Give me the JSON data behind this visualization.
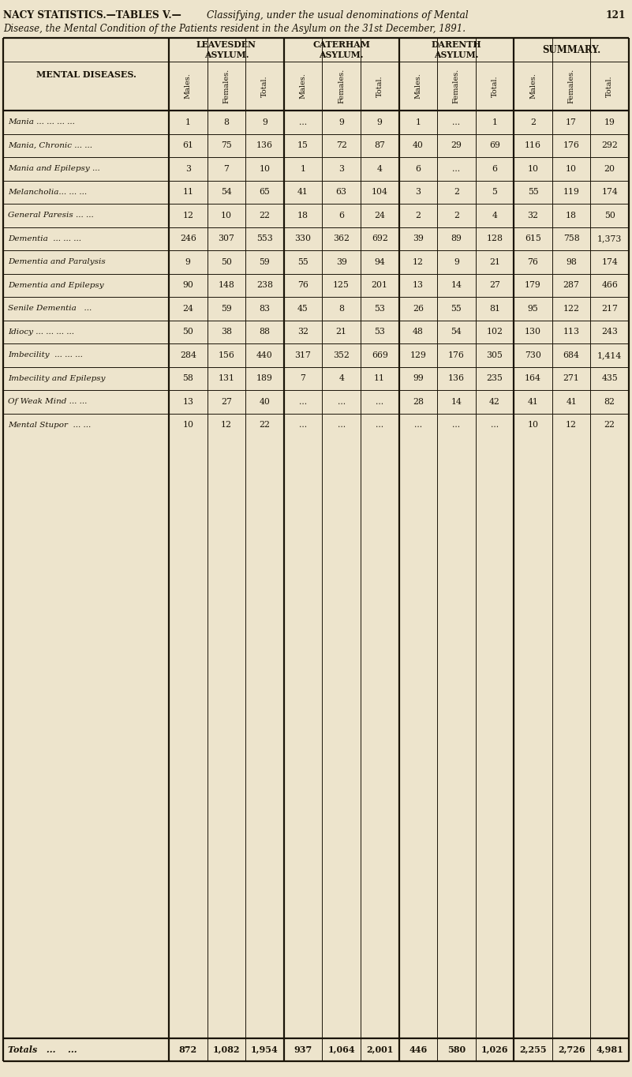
{
  "title_bold": "NACY STATISTICS.—TABLES V.—",
  "title_italic": "Classifying, under the usual denominations of Mental",
  "title_page": "121",
  "title_line2": "Disease, the Mental Condition of the Patients resident in the Asylum on the 31st December, 1891.",
  "bg_color": "#ede4cc",
  "header_row1": [
    "LEAVESDEN\nASYLUM.",
    "CATERHAM\nASYLUM.",
    "DARENTH\nASYLUM.",
    "SUMMARY."
  ],
  "header_row2": [
    "Males.",
    "Females.",
    "Total.",
    "Males.",
    "Females.",
    "Total.",
    "Males.",
    "Females.",
    "Total.",
    "Males.",
    "Females.",
    "Total."
  ],
  "row_label_header": "MENTAL DISEASES.",
  "rows": [
    {
      "label": "Mania ... ... ... ...",
      "data": [
        "1",
        "8",
        "9",
        "...",
        "9",
        "9",
        "1",
        "...",
        "1",
        "2",
        "17",
        "19"
      ]
    },
    {
      "label": "Mania, Chronic ... ...",
      "data": [
        "61",
        "75",
        "136",
        "15",
        "72",
        "87",
        "40",
        "29",
        "69",
        "116",
        "176",
        "292"
      ]
    },
    {
      "label": "Mania and Epilepsy ...",
      "data": [
        "3",
        "7",
        "10",
        "1",
        "3",
        "4",
        "6",
        "...",
        "6",
        "10",
        "10",
        "20"
      ]
    },
    {
      "label": "Melancholia... ... ...",
      "data": [
        "11",
        "54",
        "65",
        "41",
        "63",
        "104",
        "3",
        "2",
        "5",
        "55",
        "119",
        "174"
      ]
    },
    {
      "label": "General Paresis ... ...",
      "data": [
        "12",
        "10",
        "22",
        "18",
        "6",
        "24",
        "2",
        "2",
        "4",
        "32",
        "18",
        "50"
      ]
    },
    {
      "label": "Dementia  ... ... ...",
      "data": [
        "246",
        "307",
        "553",
        "330",
        "362",
        "692",
        "39",
        "89",
        "128",
        "615",
        "758",
        "1,373"
      ]
    },
    {
      "label": "Dementia and Paralysis",
      "data": [
        "9",
        "50",
        "59",
        "55",
        "39",
        "94",
        "12",
        "9",
        "21",
        "76",
        "98",
        "174"
      ]
    },
    {
      "label": "Dementia and Epilepsy",
      "data": [
        "90",
        "148",
        "238",
        "76",
        "125",
        "201",
        "13",
        "14",
        "27",
        "179",
        "287",
        "466"
      ]
    },
    {
      "label": "Senile Dementia   ...",
      "data": [
        "24",
        "59",
        "83",
        "45",
        "8",
        "53",
        "26",
        "55",
        "81",
        "95",
        "122",
        "217"
      ]
    },
    {
      "label": "Idiocy ... ... ... ...",
      "data": [
        "50",
        "38",
        "88",
        "32",
        "21",
        "53",
        "48",
        "54",
        "102",
        "130",
        "113",
        "243"
      ]
    },
    {
      "label": "Imbecility  ... ... ...",
      "data": [
        "284",
        "156",
        "440",
        "317",
        "352",
        "669",
        "129",
        "176",
        "305",
        "730",
        "684",
        "1,414"
      ]
    },
    {
      "label": "Imbecility and Epilepsy",
      "data": [
        "58",
        "131",
        "189",
        "7",
        "4",
        "11",
        "99",
        "136",
        "235",
        "164",
        "271",
        "435"
      ]
    },
    {
      "label": "Of Weak Mind ... ...",
      "data": [
        "13",
        "27",
        "40",
        "...",
        "...",
        "...",
        "28",
        "14",
        "42",
        "41",
        "41",
        "82"
      ]
    },
    {
      "label": "Mental Stupor  ... ...",
      "data": [
        "10",
        "12",
        "22",
        "...",
        "...",
        "...",
        "...",
        "...",
        "...",
        "10",
        "12",
        "22"
      ]
    }
  ],
  "totals_label": "Totals   ...    ...",
  "totals_data": [
    "872",
    "1,082",
    "1,954",
    "937",
    "1,064",
    "2,001",
    "446",
    "580",
    "1,026",
    "2,255",
    "2,726",
    "4,981"
  ],
  "text_color": "#1a1408",
  "line_color": "#1a1408"
}
